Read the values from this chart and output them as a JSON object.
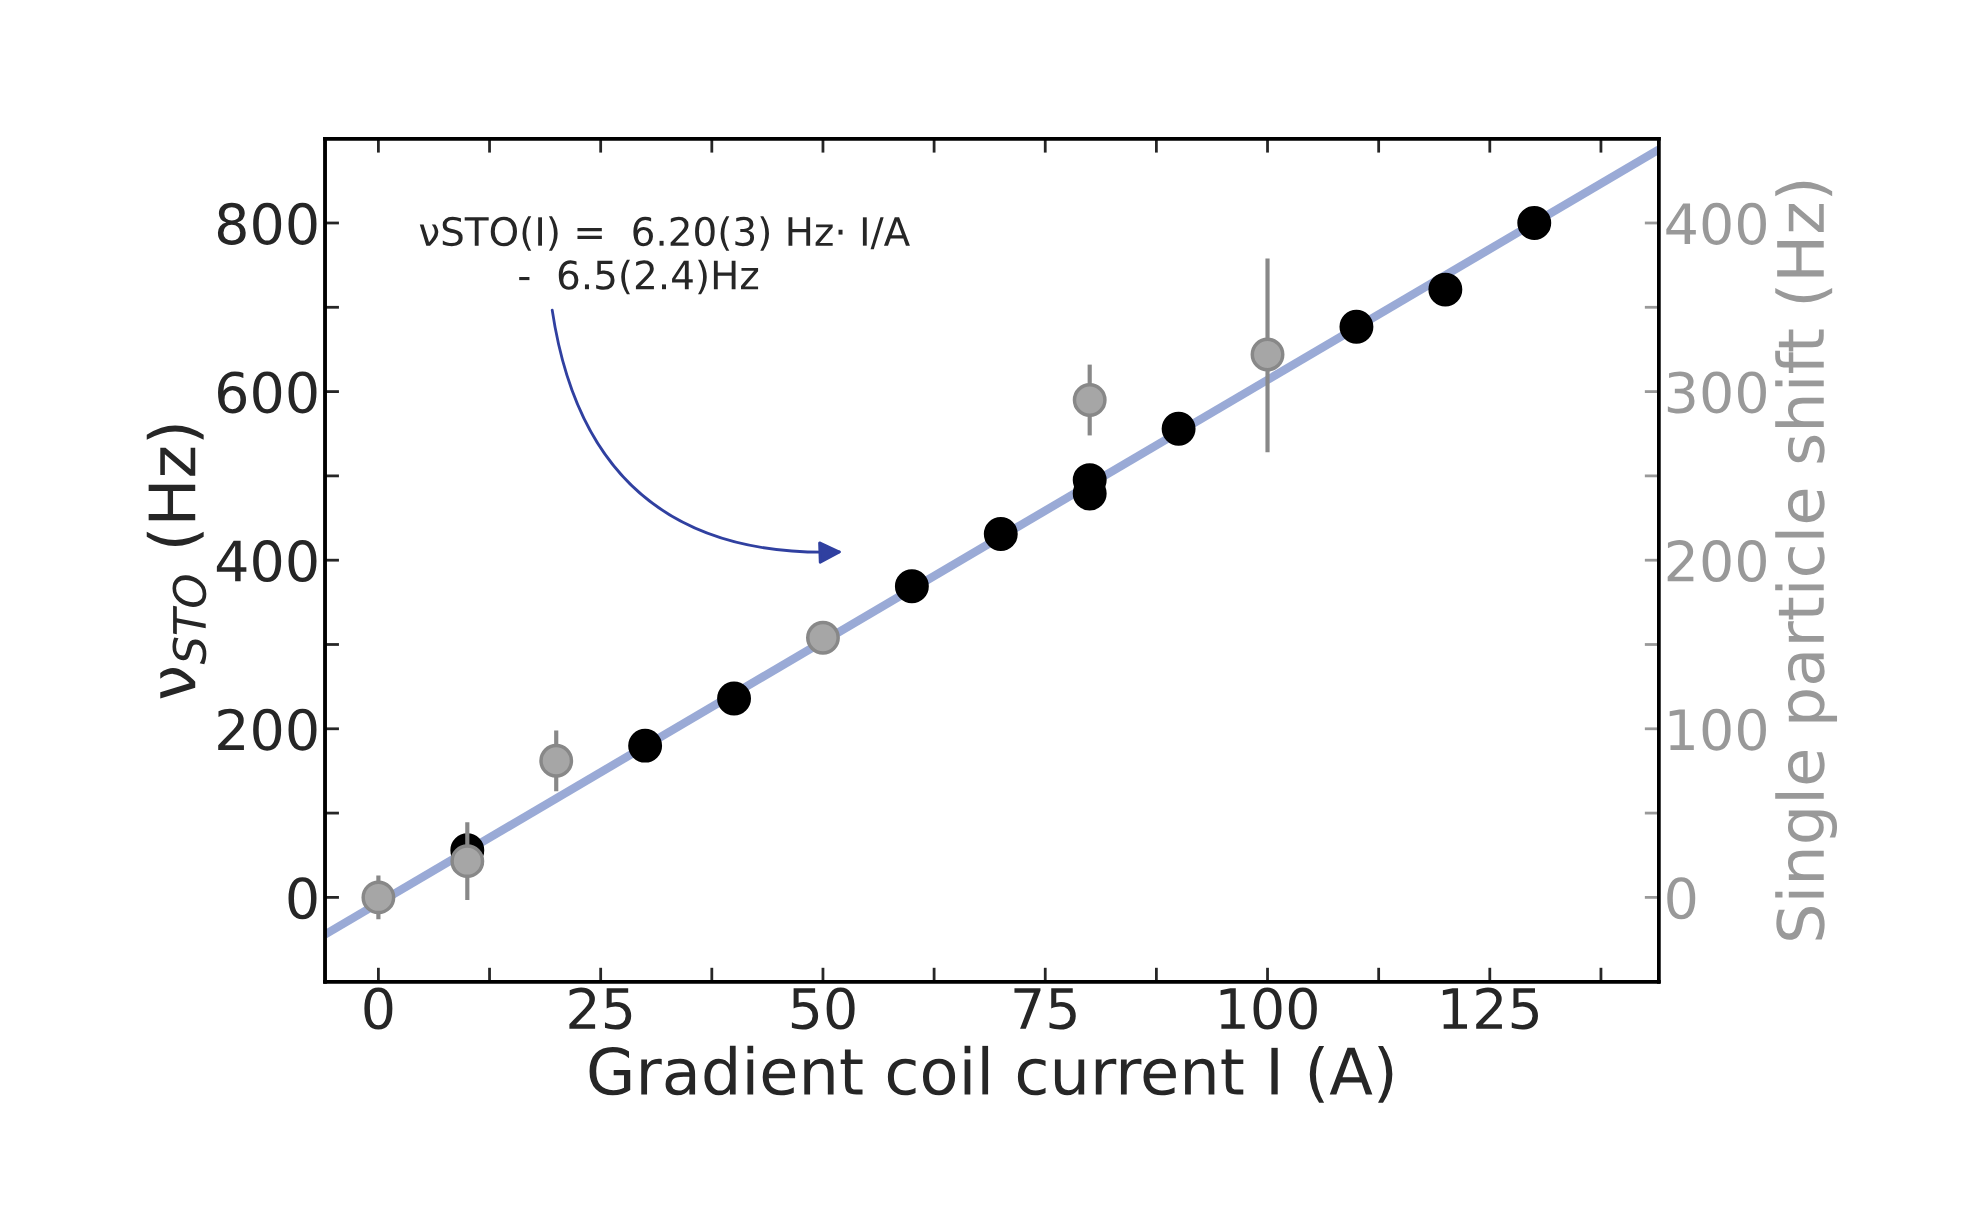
{
  "chart_data": {
    "type": "scatter",
    "xlabel": "Gradient coil current I (A)",
    "ylabel": "ν$_{STO}$ (Hz)",
    "y2label": "Single particle shift (Hz)",
    "xlim": [
      -6,
      144
    ],
    "ylim": [
      -100,
      900
    ],
    "y2lim": [
      -50,
      450
    ],
    "xticks": [
      0,
      {
        "value": 12.5,
        "label": null
      },
      25,
      {
        "value": 37.5,
        "label": null
      },
      50,
      {
        "value": 62.5,
        "label": null
      },
      75,
      {
        "value": 87.5,
        "label": null
      },
      100,
      {
        "value": 112.5,
        "label": null
      },
      125,
      {
        "value": 137.5,
        "label": null
      }
    ],
    "yticks": [
      0,
      {
        "value": 100,
        "label": null
      },
      200,
      {
        "value": 300,
        "label": null
      },
      400,
      {
        "value": 500,
        "label": null
      },
      600,
      {
        "value": 700,
        "label": null
      },
      800
    ],
    "y2ticks": [
      0,
      {
        "value": 50,
        "label": null
      },
      100,
      {
        "value": 150,
        "label": null
      },
      200,
      {
        "value": 250,
        "label": null
      },
      300,
      {
        "value": 350,
        "label": null
      },
      400
    ],
    "grid": false,
    "legend": false,
    "annotations": [
      "νSTO(I) =  6.20(3) Hz· I/A\n        -  6.5(2.4)Hz"
    ],
    "series": [
      {
        "type": "line",
        "marker": "none",
        "color": "#9aaad6",
        "x": [
          -6,
          144
        ],
        "values": [
          -44,
          887
        ]
      },
      {
        "marker": "circle",
        "color": "#000000",
        "x": [
          10,
          30,
          40,
          60,
          70,
          80,
          80,
          90,
          110,
          120,
          130
        ],
        "values": [
          56,
          180,
          236,
          369,
          431,
          495,
          479,
          556,
          677,
          721,
          800
        ]
      },
      {
        "marker": "circle",
        "color": "#a6a6a6",
        "axis": "y2",
        "x": [
          0,
          10,
          20,
          50,
          80,
          100
        ],
        "values": [
          0,
          21.5,
          81,
          154,
          295,
          322
        ],
        "errors": [
          13,
          23,
          18,
          7,
          21,
          [
            264,
            379
          ]
        ]
      }
    ]
  }
}
